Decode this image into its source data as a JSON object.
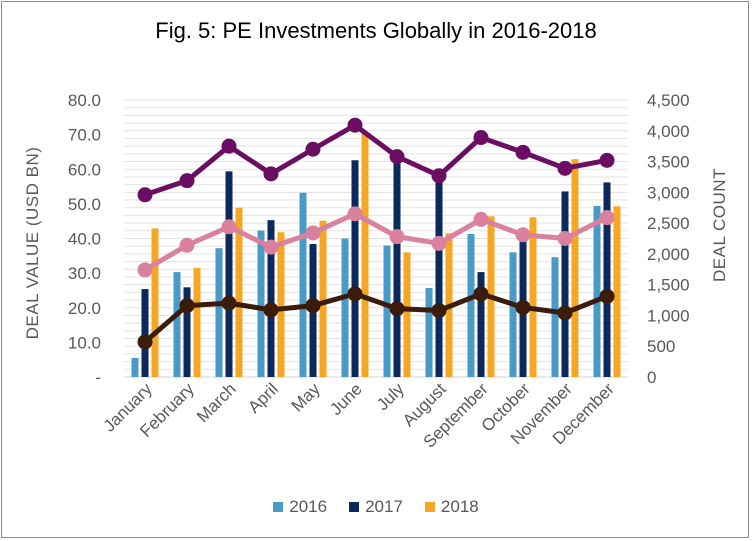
{
  "chart_data": {
    "type": "bar",
    "title": "Fig. 5: PE Investments Globally in 2016-2018",
    "categories": [
      "January",
      "February",
      "March",
      "April",
      "May",
      "June",
      "July",
      "August",
      "September",
      "October",
      "November",
      "December"
    ],
    "ylabel": "DEAL VALUE  (USD BN)",
    "y2label": "DEAL COUNT",
    "ylim": [
      0,
      80
    ],
    "y2lim": [
      0,
      4500
    ],
    "y_ticks": [
      "-",
      "10.0",
      "20.0",
      "30.0",
      "40.0",
      "50.0",
      "60.0",
      "70.0",
      "80.0"
    ],
    "y2_ticks": [
      "0",
      "500",
      "1,000",
      "1,500",
      "2,000",
      "2,500",
      "3,000",
      "3,500",
      "4,000",
      "4,500"
    ],
    "grid": true,
    "legend_position": "bottom",
    "bar_series": [
      {
        "name": "2016",
        "color": "#4a9ac8",
        "values": [
          5.5,
          30.3,
          37.2,
          42.3,
          53.2,
          40.0,
          38.0,
          25.7,
          41.3,
          36.0,
          34.6,
          49.4
        ]
      },
      {
        "name": "2017",
        "color": "#0b2a5b",
        "values": [
          25.4,
          25.9,
          59.4,
          45.3,
          38.4,
          62.6,
          63.0,
          59.0,
          30.3,
          40.7,
          53.6,
          56.2
        ]
      },
      {
        "name": "2018",
        "color": "#f5a623",
        "values": [
          42.9,
          31.5,
          48.9,
          41.8,
          45.1,
          70.4,
          36.0,
          41.5,
          46.4,
          46.1,
          62.9,
          49.3
        ]
      }
    ],
    "line_series": [
      {
        "color": "#6b0e63",
        "values": [
          2960,
          3190,
          3750,
          3300,
          3700,
          4090,
          3580,
          3270,
          3890,
          3650,
          3390,
          3520
        ]
      },
      {
        "color": "#d9819e",
        "values": [
          1740,
          2140,
          2440,
          2110,
          2340,
          2650,
          2280,
          2170,
          2560,
          2310,
          2250,
          2590
        ]
      },
      {
        "color": "#3b1c0c",
        "values": [
          570,
          1160,
          1200,
          1090,
          1160,
          1350,
          1110,
          1080,
          1350,
          1130,
          1040,
          1310
        ]
      }
    ]
  }
}
